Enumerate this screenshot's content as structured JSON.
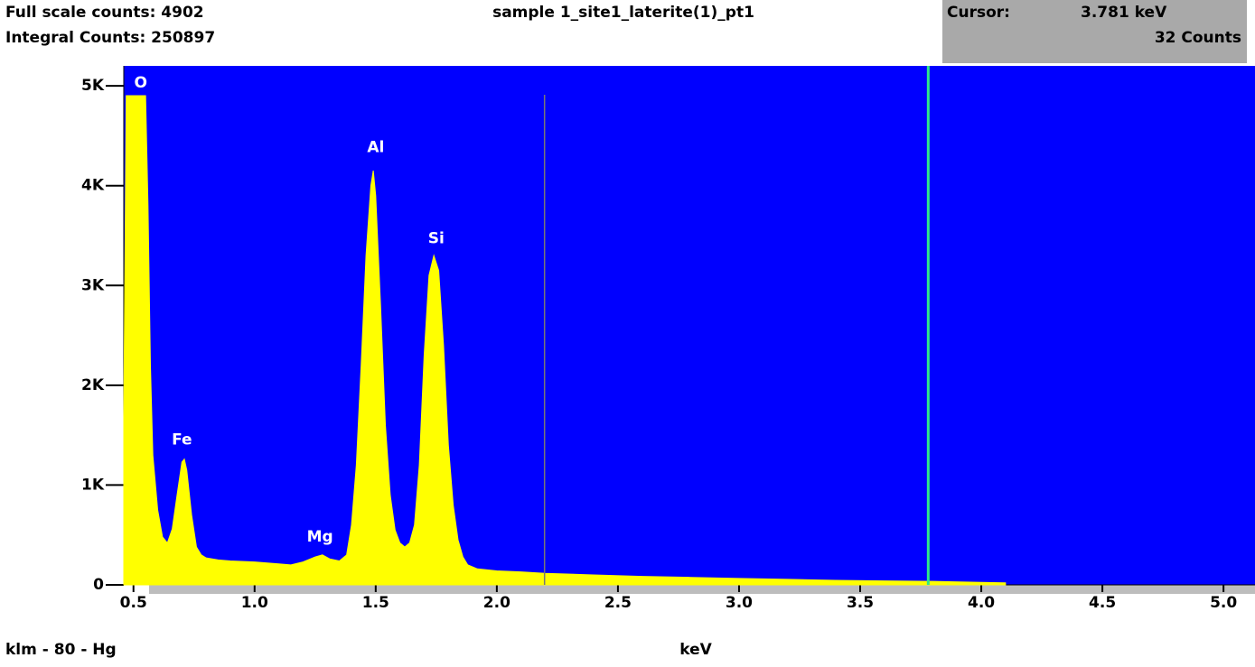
{
  "chart_data": {
    "type": "area",
    "title": "sample 1_site1_laterite(1)_pt1",
    "full_scale_text": "Full scale counts: 4902",
    "integral_text": "Integral Counts: 250897",
    "cursor": {
      "title": "Cursor:",
      "value": 3.781,
      "label": "3.781 keV",
      "counts_label": "32 Counts",
      "color": "#2ee88a"
    },
    "lines_text": "klm - 80 - Hg",
    "x_label": "keV",
    "markers": [
      2.197
    ],
    "background": "#0000ff",
    "color": "#ffff00",
    "xlim": [
      0.46,
      5.13
    ],
    "ylim": [
      0,
      5200
    ],
    "xticks": [
      0.5,
      {
        "value": 1,
        "label": "1.0"
      },
      1.5,
      {
        "value": 2,
        "label": "2.0"
      },
      2.5,
      {
        "value": 3,
        "label": "3.0"
      },
      3.5,
      {
        "value": 4,
        "label": "4.0"
      },
      4.5,
      {
        "value": 5,
        "label": "5.0"
      }
    ],
    "yticks": [
      0,
      {
        "value": 1000,
        "label": "1K"
      },
      {
        "value": 2000,
        "label": "2K"
      },
      {
        "value": 3000,
        "label": "3K"
      },
      {
        "value": 4000,
        "label": "4K"
      },
      {
        "value": 5000,
        "label": "5K"
      }
    ],
    "x": [
      0.46,
      0.47,
      0.5,
      0.55,
      0.56,
      0.57,
      0.58,
      0.6,
      0.62,
      0.64,
      0.66,
      0.68,
      0.7,
      0.71,
      0.72,
      0.74,
      0.76,
      0.78,
      0.8,
      0.85,
      0.9,
      1.0,
      1.1,
      1.15,
      1.2,
      1.25,
      1.28,
      1.31,
      1.35,
      1.38,
      1.4,
      1.42,
      1.44,
      1.46,
      1.48,
      1.49,
      1.5,
      1.52,
      1.54,
      1.56,
      1.58,
      1.6,
      1.62,
      1.64,
      1.66,
      1.68,
      1.7,
      1.72,
      1.74,
      1.76,
      1.78,
      1.8,
      1.82,
      1.84,
      1.86,
      1.88,
      1.92,
      2.0,
      2.1,
      2.2,
      2.4,
      2.6,
      2.8,
      3.0,
      3.2,
      3.4,
      3.6,
      3.8,
      4.0,
      4.1
    ],
    "values": [
      1680,
      4902,
      4902,
      4902,
      3800,
      2200,
      1300,
      750,
      480,
      420,
      560,
      900,
      1230,
      1260,
      1150,
      700,
      380,
      300,
      270,
      250,
      240,
      230,
      210,
      200,
      230,
      280,
      300,
      260,
      240,
      300,
      600,
      1200,
      2200,
      3300,
      4000,
      4150,
      3900,
      2800,
      1600,
      900,
      550,
      420,
      380,
      420,
      600,
      1200,
      2300,
      3100,
      3300,
      3150,
      2400,
      1400,
      800,
      450,
      280,
      200,
      160,
      140,
      130,
      115,
      100,
      85,
      75,
      65,
      55,
      45,
      40,
      35,
      25,
      20
    ],
    "annotations": [
      {
        "text": "O",
        "x": 0.53,
        "y": 5030
      },
      {
        "text": "Fe",
        "x": 0.7,
        "y": 1450
      },
      {
        "text": "Mg",
        "x": 1.27,
        "y": 480
      },
      {
        "text": "Al",
        "x": 1.5,
        "y": 4380
      },
      {
        "text": "Si",
        "x": 1.75,
        "y": 3470
      }
    ]
  }
}
